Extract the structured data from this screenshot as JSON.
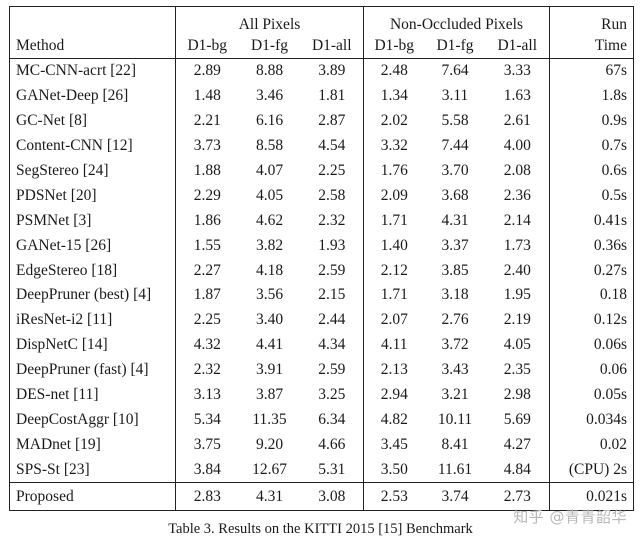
{
  "header": {
    "group_all": "All Pixels",
    "group_noc": "Non-Occluded Pixels",
    "run_top": "Run",
    "method": "Method",
    "cols": [
      "D1-bg",
      "D1-fg",
      "D1-all",
      "D1-bg",
      "D1-fg",
      "D1-all"
    ],
    "run_bottom": "Time"
  },
  "rows": [
    {
      "method": "MC-CNN-acrt [22]",
      "values": [
        "2.89",
        "8.88",
        "3.89",
        "2.48",
        "7.64",
        "3.33"
      ],
      "time": "67s"
    },
    {
      "method": "GANet-Deep [26]",
      "values": [
        "1.48",
        "3.46",
        "1.81",
        "1.34",
        "3.11",
        "1.63"
      ],
      "time": "1.8s"
    },
    {
      "method": "GC-Net [8]",
      "values": [
        "2.21",
        "6.16",
        "2.87",
        "2.02",
        "5.58",
        "2.61"
      ],
      "time": "0.9s"
    },
    {
      "method": "Content-CNN [12]",
      "values": [
        "3.73",
        "8.58",
        "4.54",
        "3.32",
        "7.44",
        "4.00"
      ],
      "time": "0.7s"
    },
    {
      "method": "SegStereo [24]",
      "values": [
        "1.88",
        "4.07",
        "2.25",
        "1.76",
        "3.70",
        "2.08"
      ],
      "time": "0.6s"
    },
    {
      "method": "PDSNet [20]",
      "values": [
        "2.29",
        "4.05",
        "2.58",
        "2.09",
        "3.68",
        "2.36"
      ],
      "time": "0.5s"
    },
    {
      "method": "PSMNet [3]",
      "values": [
        "1.86",
        "4.62",
        "2.32",
        "1.71",
        "4.31",
        "2.14"
      ],
      "time": "0.41s"
    },
    {
      "method": "GANet-15 [26]",
      "values": [
        "1.55",
        "3.82",
        "1.93",
        "1.40",
        "3.37",
        "1.73"
      ],
      "time": "0.36s"
    },
    {
      "method": "EdgeStereo [18]",
      "values": [
        "2.27",
        "4.18",
        "2.59",
        "2.12",
        "3.85",
        "2.40"
      ],
      "time": "0.27s"
    },
    {
      "method": "DeepPruner (best) [4]",
      "values": [
        "1.87",
        "3.56",
        "2.15",
        "1.71",
        "3.18",
        "1.95"
      ],
      "time": "0.18"
    },
    {
      "method": "iResNet-i2 [11]",
      "values": [
        "2.25",
        "3.40",
        "2.44",
        "2.07",
        "2.76",
        "2.19"
      ],
      "time": "0.12s"
    },
    {
      "method": "DispNetC [14]",
      "values": [
        "4.32",
        "4.41",
        "4.34",
        "4.11",
        "3.72",
        "4.05"
      ],
      "time": "0.06s"
    },
    {
      "method": "DeepPruner (fast) [4]",
      "values": [
        "2.32",
        "3.91",
        "2.59",
        "2.13",
        "3.43",
        "2.35"
      ],
      "time": "0.06"
    },
    {
      "method": "DES-net [11]",
      "values": [
        "3.13",
        "3.87",
        "3.25",
        "2.94",
        "3.21",
        "2.98"
      ],
      "time": "0.05s"
    },
    {
      "method": "DeepCostAggr [10]",
      "values": [
        "5.34",
        "11.35",
        "6.34",
        "4.82",
        "10.11",
        "5.69"
      ],
      "time": "0.034s"
    },
    {
      "method": "MADnet [19]",
      "values": [
        "3.75",
        "9.20",
        "4.66",
        "3.45",
        "8.41",
        "4.27"
      ],
      "time": "0.02"
    },
    {
      "method": "SPS-St [23]",
      "values": [
        "3.84",
        "12.67",
        "5.31",
        "3.50",
        "11.61",
        "4.84"
      ],
      "time": "(CPU) 2s"
    }
  ],
  "proposed": {
    "method": "Proposed",
    "values": [
      "2.83",
      "4.31",
      "3.08",
      "2.53",
      "3.74",
      "2.73"
    ],
    "time": "0.021s"
  },
  "caption": "Table 3. Results on the KITTI 2015 [15] Benchmark",
  "watermark": "知乎 @青青韶华"
}
